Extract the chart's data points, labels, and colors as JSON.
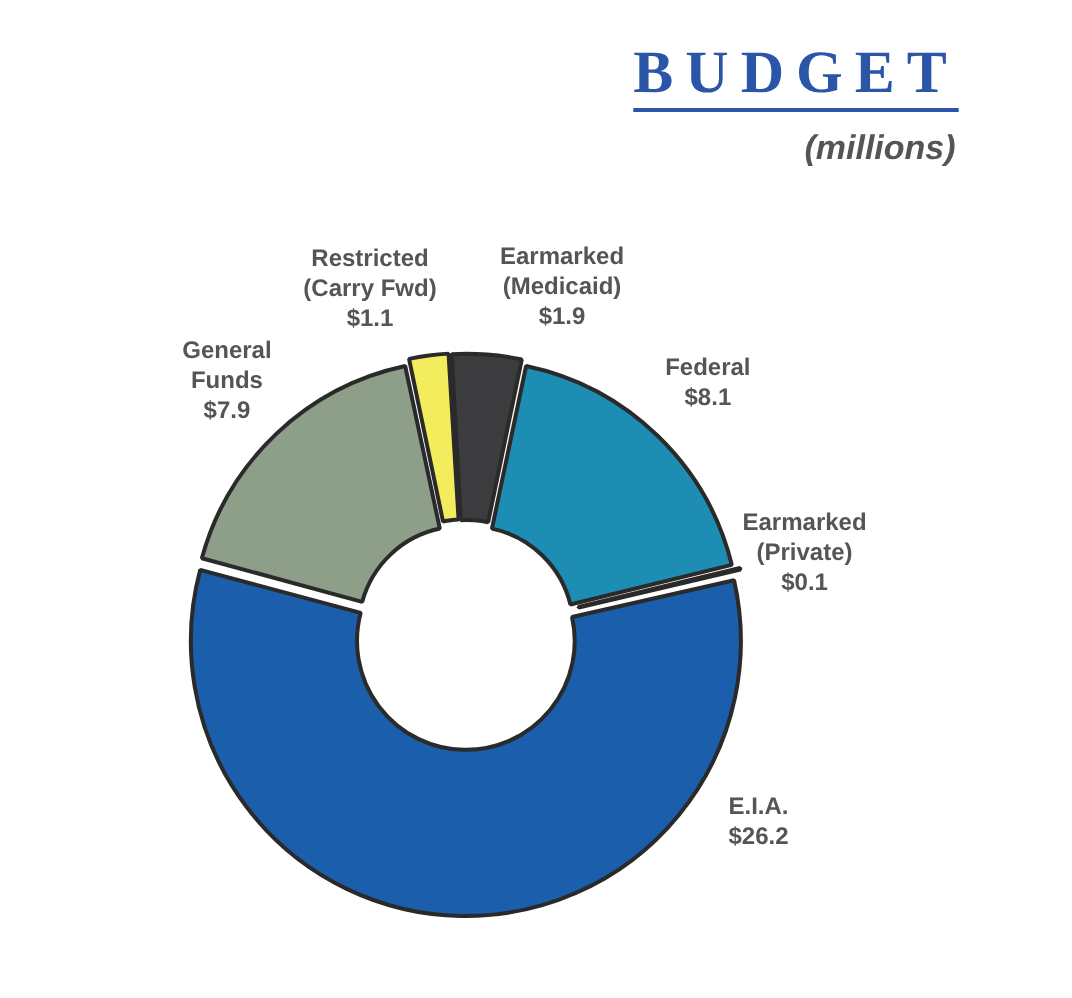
{
  "chart_data": {
    "type": "donut",
    "title": "BUDGET",
    "subtitle": "(millions)",
    "categories": [
      "Restricted (Carry Fwd)",
      "Earmarked (Medicaid)",
      "Federal",
      "Earmarked (Private)",
      "E.I.A.",
      "General Funds"
    ],
    "values": [
      1.1,
      1.9,
      8.1,
      0.1,
      26.2,
      7.9
    ],
    "value_labels": [
      "$1.1",
      "$1.9",
      "$8.1",
      "$0.1",
      "$26.2",
      "$7.9"
    ],
    "colors": [
      "#f3ec5c",
      "#3c3c3e",
      "#1d8db4",
      "#2e2e30",
      "#1b5eab",
      "#8d9e89"
    ]
  }
}
